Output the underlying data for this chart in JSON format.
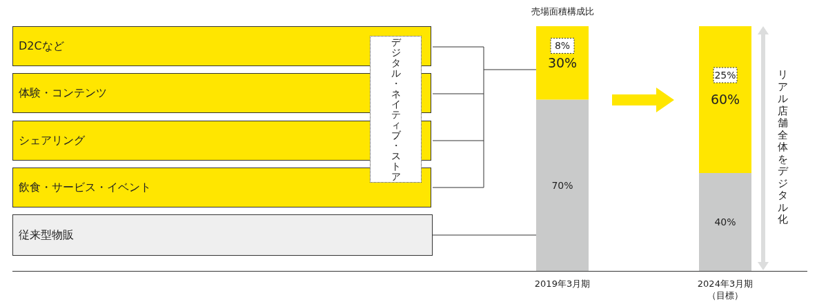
{
  "chart_data": {
    "type": "bar",
    "title": "売場面積構成比",
    "categories": [
      "2019年3月期",
      "2024年3月期（目標）"
    ],
    "stacked": true,
    "ylim": [
      0,
      100
    ],
    "tick_labels": "x",
    "legend": false,
    "grid": false,
    "series": [
      {
        "color": "#c9caca",
        "values": [
          70,
          40
        ],
        "value_labels": [
          "70%",
          "40%"
        ]
      },
      {
        "color": "#ffe600",
        "values": [
          30,
          60
        ],
        "value_labels": [
          "30%",
          "60%"
        ]
      }
    ],
    "annotations": [
      "D2Cなど",
      "体験・コンテンツ",
      "シェアリング",
      "飲食・サービス・イベント",
      "従来型物販",
      "デジタル・ネイティブ・ストア",
      {
        "text": "8%",
        "x": "2019年3月期",
        "y": 92
      },
      {
        "text": "25%",
        "x": "2024年3月期（目標）",
        "y": 80
      },
      "リアル店舗全体をデジタル化"
    ]
  }
}
